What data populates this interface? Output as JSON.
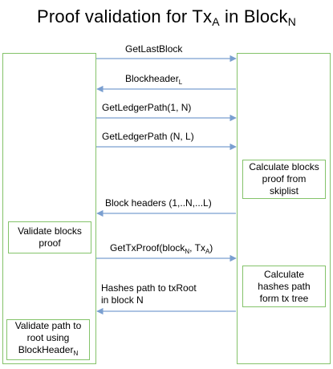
{
  "title": {
    "text": "Proof validation for Tx",
    "sub1": "A",
    "mid": " in Block",
    "sub2": "N"
  },
  "colors": {
    "lane_border": "#84c36a",
    "arrow": "#7a9fd0"
  },
  "messages": [
    {
      "text": "GetLastBlock",
      "direction": "right"
    },
    {
      "text": "Blockheader",
      "sub": "L",
      "direction": "left"
    },
    {
      "text": "GetLedgerPath(1, N)",
      "direction": "right"
    },
    {
      "text": "GetLedgerPath (N, L)",
      "direction": "right"
    },
    {
      "text": "Block headers (1,..N,...L)",
      "direction": "left"
    },
    {
      "text": "GetTxProof(block",
      "sub": "N",
      "mid": ", Tx",
      "sub2": "A",
      "end": ")",
      "direction": "right"
    },
    {
      "line1": "Hashes path to txRoot",
      "line2": "in block N",
      "direction": "left"
    }
  ],
  "right_boxes": [
    {
      "line1": "Calculate blocks",
      "line2": "proof from",
      "line3": "skiplist"
    },
    {
      "line1": "Calculate",
      "line2": "hashes path",
      "line3": "form tx tree"
    }
  ],
  "left_boxes": [
    {
      "line1": "Validate blocks",
      "line2": "proof"
    },
    {
      "line1": "Validate path to",
      "line2": "root using",
      "line3": "BlockHeader",
      "line3_sub": "N"
    }
  ]
}
